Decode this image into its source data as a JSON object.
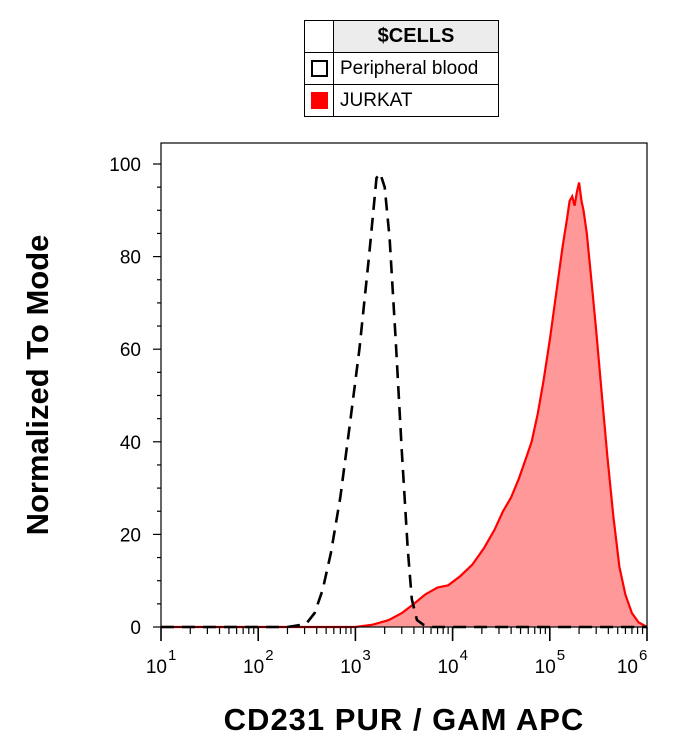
{
  "legend": {
    "title": "$CELLS",
    "items": [
      {
        "label": "Peripheral blood",
        "style": "open-square",
        "color": "#000000"
      },
      {
        "label": "JURKAT",
        "style": "filled-square",
        "color": "#ff0000"
      }
    ]
  },
  "chart_data": {
    "type": "area",
    "xlabel": "CD231 PUR / GAM APC",
    "ylabel": "Normalized To Mode",
    "x_scale": "log",
    "xlim": [
      10,
      1000000
    ],
    "ylim": [
      0,
      100
    ],
    "x_ticks": [
      {
        "base": "10",
        "exp": "1"
      },
      {
        "base": "10",
        "exp": "2"
      },
      {
        "base": "10",
        "exp": "3"
      },
      {
        "base": "10",
        "exp": "4"
      },
      {
        "base": "10",
        "exp": "5"
      },
      {
        "base": "10",
        "exp": "6"
      }
    ],
    "y_ticks": [
      "0",
      "20",
      "40",
      "60",
      "80",
      "100"
    ],
    "series": [
      {
        "name": "Peripheral blood",
        "style": "dashed",
        "color": "#000000",
        "x": [
          10,
          200,
          280,
          320,
          380,
          460,
          560,
          700,
          880,
          1100,
          1380,
          1650,
          1800,
          2000,
          2250,
          2600,
          3000,
          3450,
          3800,
          4300,
          5000,
          6000,
          1000000
        ],
        "y": [
          0,
          0,
          0.5,
          1,
          3,
          8,
          16,
          28,
          44,
          60,
          80,
          97,
          98,
          95,
          84,
          62,
          38,
          17,
          6,
          1.5,
          0.5,
          0,
          0
        ]
      },
      {
        "name": "JURKAT",
        "style": "filled",
        "color": "#ff0000",
        "fill": "#ff9999",
        "x": [
          10,
          1000,
          1500,
          2200,
          3000,
          4000,
          5200,
          7000,
          9000,
          12000,
          16000,
          21000,
          27000,
          33000,
          40000,
          48000,
          56000,
          65000,
          75000,
          86000,
          100000,
          118000,
          135000,
          150000,
          160000,
          170000,
          180000,
          190000,
          200000,
          212000,
          222000,
          240000,
          265000,
          300000,
          340000,
          390000,
          450000,
          520000,
          600000,
          700000,
          820000,
          1000000
        ],
        "y": [
          0,
          0,
          0.5,
          1.5,
          3,
          5,
          7,
          8.5,
          9,
          11,
          13.5,
          17,
          21,
          25,
          28,
          32,
          36,
          40,
          46,
          53,
          62,
          73,
          82,
          88,
          92,
          93,
          91,
          94,
          96,
          92,
          90,
          85,
          76,
          64,
          51,
          37,
          24,
          13,
          7,
          3,
          1,
          0
        ]
      }
    ],
    "grid": false,
    "legend_position": "top"
  }
}
